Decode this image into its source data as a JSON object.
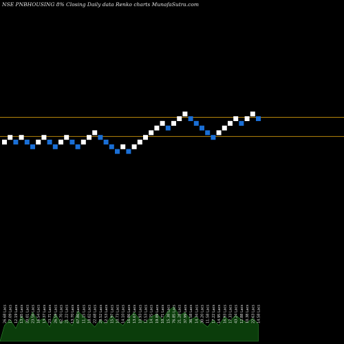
{
  "title": "NSE PNBHOUSING 8% Closing Daily data Renko charts MunafaSutra.com",
  "colors": {
    "background": "#000000",
    "up_brick": "#ffffff",
    "down_brick": "#1a6fd6",
    "reference_line": "#b8860b",
    "volume_fill": "#0b3d0b",
    "volume_stroke": "#2e8b2e",
    "label": "#e6e6e6"
  },
  "chart_data": {
    "type": "renko",
    "title": "NSE PNBHOUSING 8% Closing Daily data Renko charts MunafaSutra.com",
    "brick_size_pct": 8,
    "grid": false,
    "legend": "none",
    "bricks": [
      {
        "i": 0,
        "level": 0,
        "dir": "up"
      },
      {
        "i": 1,
        "level": 1,
        "dir": "up"
      },
      {
        "i": 2,
        "level": 0,
        "dir": "down"
      },
      {
        "i": 3,
        "level": 1,
        "dir": "up"
      },
      {
        "i": 4,
        "level": 0,
        "dir": "down"
      },
      {
        "i": 5,
        "level": -1,
        "dir": "down"
      },
      {
        "i": 6,
        "level": 0,
        "dir": "up"
      },
      {
        "i": 7,
        "level": 1,
        "dir": "up"
      },
      {
        "i": 8,
        "level": 0,
        "dir": "down"
      },
      {
        "i": 9,
        "level": -1,
        "dir": "down"
      },
      {
        "i": 10,
        "level": 0,
        "dir": "up"
      },
      {
        "i": 11,
        "level": 1,
        "dir": "up"
      },
      {
        "i": 12,
        "level": 0,
        "dir": "down"
      },
      {
        "i": 13,
        "level": -1,
        "dir": "down"
      },
      {
        "i": 14,
        "level": 0,
        "dir": "up"
      },
      {
        "i": 15,
        "level": 1,
        "dir": "up"
      },
      {
        "i": 16,
        "level": 2,
        "dir": "up"
      },
      {
        "i": 17,
        "level": 1,
        "dir": "down"
      },
      {
        "i": 18,
        "level": 0,
        "dir": "down"
      },
      {
        "i": 19,
        "level": -1,
        "dir": "down"
      },
      {
        "i": 20,
        "level": -2,
        "dir": "down"
      },
      {
        "i": 21,
        "level": -1,
        "dir": "up"
      },
      {
        "i": 22,
        "level": -2,
        "dir": "down"
      },
      {
        "i": 23,
        "level": -1,
        "dir": "up"
      },
      {
        "i": 24,
        "level": 0,
        "dir": "up"
      },
      {
        "i": 25,
        "level": 1,
        "dir": "up"
      },
      {
        "i": 26,
        "level": 2,
        "dir": "up"
      },
      {
        "i": 27,
        "level": 3,
        "dir": "up"
      },
      {
        "i": 28,
        "level": 4,
        "dir": "up"
      },
      {
        "i": 29,
        "level": 3,
        "dir": "down"
      },
      {
        "i": 30,
        "level": 4,
        "dir": "up"
      },
      {
        "i": 31,
        "level": 5,
        "dir": "up"
      },
      {
        "i": 32,
        "level": 6,
        "dir": "up"
      },
      {
        "i": 33,
        "level": 5,
        "dir": "down"
      },
      {
        "i": 34,
        "level": 4,
        "dir": "down"
      },
      {
        "i": 35,
        "level": 3,
        "dir": "down"
      },
      {
        "i": 36,
        "level": 2,
        "dir": "down"
      },
      {
        "i": 37,
        "level": 1,
        "dir": "down"
      },
      {
        "i": 38,
        "level": 2,
        "dir": "up"
      },
      {
        "i": 39,
        "level": 3,
        "dir": "up"
      },
      {
        "i": 40,
        "level": 4,
        "dir": "up"
      },
      {
        "i": 41,
        "level": 5,
        "dir": "up"
      },
      {
        "i": 42,
        "level": 4,
        "dir": "down"
      },
      {
        "i": 43,
        "level": 5,
        "dir": "up"
      },
      {
        "i": 44,
        "level": 6,
        "dir": "up"
      },
      {
        "i": 45,
        "level": 5,
        "dir": "down"
      }
    ],
    "volume": [
      22,
      30,
      18,
      35,
      25,
      40,
      28,
      32,
      20,
      38,
      26,
      30,
      22,
      42,
      34,
      28,
      20,
      30,
      24,
      36,
      28,
      22,
      32,
      40,
      30,
      26,
      34,
      38,
      30,
      42,
      48,
      36,
      40,
      30,
      34,
      26,
      20,
      30,
      22,
      34,
      28,
      36,
      30,
      26,
      32,
      24
    ],
    "volume_labels": [
      "26.68 Lacs",
      "17.09 Lacs",
      "12.19 Lacs",
      "13.65 Lacs",
      "20.01 Lacs",
      "23.56 Lacs",
      "16.54 Lacs",
      "13.37 Lacs",
      "23.71 Lacs",
      "26.59 Lacs",
      "62.70 Lacs",
      "21.22 Lacs",
      "13.70 Lacs",
      "67.86 Lacs",
      "11.15 Lacs",
      "18.02 Lacs",
      "22.68 Lacs",
      "28.52 Lacs",
      "12.53 Lacs",
      "15.97 Lacs",
      "10.73 Lacs",
      "14.10 Lacs",
      "16.86 Lacs",
      "13.67 Lacs",
      "10.93 Lacs",
      "12.53 Lacs",
      "14.75 Lacs",
      "19.89 Lacs",
      "10.71 Lacs",
      "15.38 Lacs",
      "76.85 Lacs",
      "21.28 Lacs",
      "37.99 Lacs",
      "36.58 Lacs",
      "14.34 Lacs",
      "30.20 Lacs",
      "11.58 Lacs",
      "17.22 Lacs",
      "14.95 Lacs",
      "16.93 Lacs",
      "17.33 Lacs",
      "43.24 Lacs",
      "12.88 Lacs",
      "10.38 Lacs",
      "22.63 Lacs",
      "14.58 Lacs"
    ],
    "reference_lines": [
      {
        "level": 5.3
      },
      {
        "level": 1.2
      }
    ]
  }
}
